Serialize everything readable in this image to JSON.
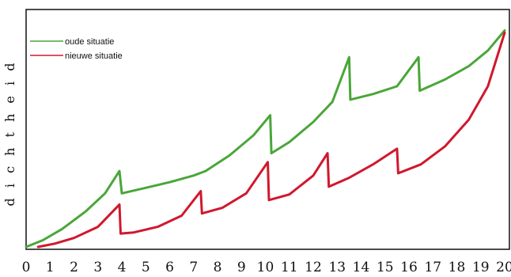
{
  "chart_data": {
    "type": "line",
    "ylabel": "d i c h t h e i d",
    "xlim": [
      0,
      20
    ],
    "ylim": [
      0,
      100
    ],
    "grid": false,
    "x_ticks": [
      "0",
      "1",
      "2",
      "3",
      "4",
      "5",
      "6",
      "7",
      "8",
      "9",
      "10",
      "11",
      "12",
      "13",
      "14",
      "15",
      "16",
      "17",
      "18",
      "19",
      "20"
    ],
    "legend_position": "top-left",
    "series": [
      {
        "name": "oude situatie",
        "color": "#4aa63a",
        "points": [
          [
            0,
            0
          ],
          [
            0.7,
            3
          ],
          [
            1.5,
            8
          ],
          [
            2.5,
            16
          ],
          [
            3.3,
            24
          ],
          [
            3.9,
            34
          ],
          [
            4.0,
            24
          ],
          [
            5.0,
            26.5
          ],
          [
            6.0,
            29
          ],
          [
            7.0,
            32
          ],
          [
            7.5,
            34
          ],
          [
            8.5,
            41
          ],
          [
            9.5,
            50
          ],
          [
            10.2,
            59
          ],
          [
            10.25,
            42
          ],
          [
            11.0,
            47
          ],
          [
            12.0,
            56
          ],
          [
            12.8,
            65
          ],
          [
            13.5,
            85
          ],
          [
            13.55,
            66
          ],
          [
            14.5,
            68.5
          ],
          [
            15.5,
            72
          ],
          [
            16.4,
            85
          ],
          [
            16.45,
            70
          ],
          [
            17.5,
            75
          ],
          [
            18.5,
            81
          ],
          [
            19.3,
            88
          ],
          [
            20.0,
            97
          ]
        ]
      },
      {
        "name": "nieuwe situatie",
        "color": "#d0182e",
        "points": [
          [
            0.5,
            0
          ],
          [
            1.2,
            1.5
          ],
          [
            2.0,
            4
          ],
          [
            3.0,
            9
          ],
          [
            3.9,
            19
          ],
          [
            3.95,
            6
          ],
          [
            4.5,
            6.5
          ],
          [
            5.5,
            9
          ],
          [
            6.5,
            14
          ],
          [
            7.3,
            25
          ],
          [
            7.35,
            15
          ],
          [
            8.2,
            17.5
          ],
          [
            9.2,
            24
          ],
          [
            10.1,
            38
          ],
          [
            10.15,
            21
          ],
          [
            11.0,
            23.5
          ],
          [
            12.0,
            32
          ],
          [
            12.6,
            42
          ],
          [
            12.65,
            27
          ],
          [
            13.5,
            31
          ],
          [
            14.5,
            37
          ],
          [
            15.5,
            44
          ],
          [
            15.55,
            33
          ],
          [
            16.5,
            37
          ],
          [
            17.5,
            45
          ],
          [
            18.5,
            57
          ],
          [
            19.3,
            72
          ],
          [
            20.0,
            96
          ]
        ]
      }
    ]
  }
}
